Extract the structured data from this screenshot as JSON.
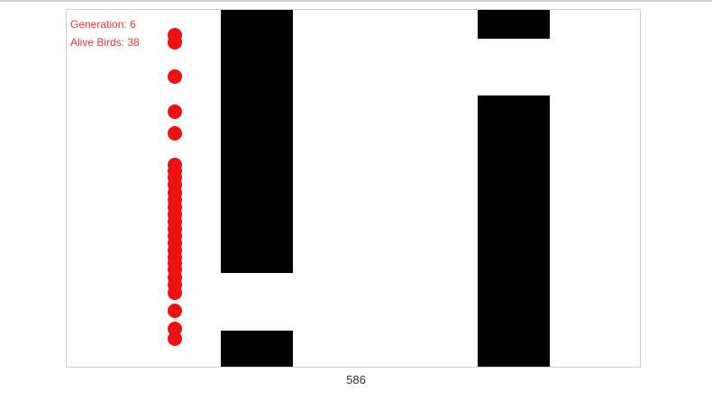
{
  "hud": {
    "generation_label": "Generation: 6",
    "alive_label": "Alive Birds: 38"
  },
  "score": "586",
  "colors": {
    "bird": "#ee1111",
    "pipe": "#000000",
    "hud_text": "#ee3333",
    "canvas_border": "#cfcfcf"
  }
}
